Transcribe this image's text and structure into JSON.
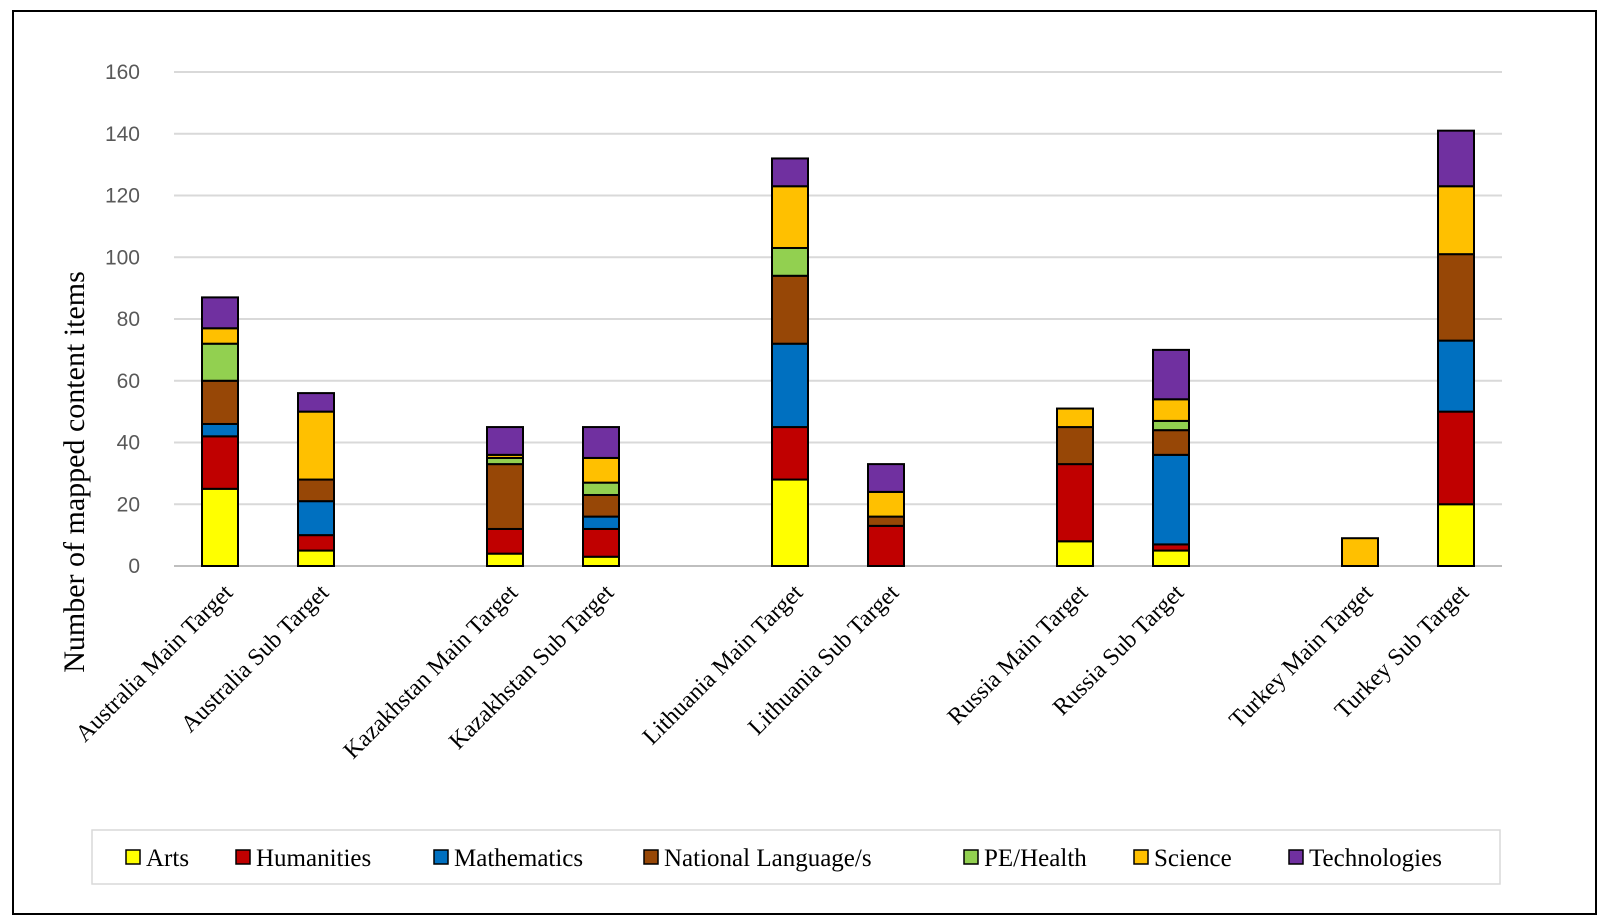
{
  "chart_data": {
    "type": "bar",
    "stacked": true,
    "title": "",
    "xlabel": "",
    "ylabel": "Number of mapped content items",
    "ylim": [
      0,
      160
    ],
    "yticks": [
      0,
      20,
      40,
      60,
      80,
      100,
      120,
      140,
      160
    ],
    "grid": true,
    "legend_position": "bottom",
    "categories": [
      "Australia Main Target",
      "Australia Sub Target",
      "Kazakhstan Main Target",
      "Kazakhstan Sub Target",
      "Lithuania Main Target",
      "Lithuania Sub Target",
      "Russia Main Target",
      "Russia Sub Target",
      "Turkey Main Target",
      "Turkey Sub Target"
    ],
    "groups": [
      [
        "Australia Main Target",
        "Australia Sub Target"
      ],
      [
        "Kazakhstan Main Target",
        "Kazakhstan Sub Target"
      ],
      [
        "Lithuania Main Target",
        "Lithuania Sub Target"
      ],
      [
        "Russia Main Target",
        "Russia Sub Target"
      ],
      [
        "Turkey Main Target",
        "Turkey Sub Target"
      ]
    ],
    "series": [
      {
        "name": "Arts",
        "color": "#FFFF00",
        "values": [
          25,
          5,
          4,
          3,
          28,
          0,
          8,
          5,
          0,
          20
        ]
      },
      {
        "name": "Humanities",
        "color": "#C00000",
        "values": [
          17,
          5,
          8,
          9,
          17,
          13,
          25,
          2,
          0,
          30
        ]
      },
      {
        "name": "Mathematics",
        "color": "#0070C0",
        "values": [
          4,
          11,
          0,
          4,
          27,
          0,
          0,
          29,
          0,
          23
        ]
      },
      {
        "name": "National Language/s",
        "color": "#974706",
        "values": [
          14,
          7,
          21,
          7,
          22,
          3,
          12,
          8,
          0,
          28
        ]
      },
      {
        "name": "PE/Health",
        "color": "#92D050",
        "values": [
          12,
          0,
          2,
          4,
          9,
          0,
          0,
          3,
          0,
          0
        ]
      },
      {
        "name": "Science",
        "color": "#FFC000",
        "values": [
          5,
          22,
          1,
          8,
          20,
          8,
          6,
          7,
          9,
          22
        ]
      },
      {
        "name": "Technologies",
        "color": "#7030A0",
        "values": [
          10,
          6,
          9,
          10,
          9,
          9,
          0,
          16,
          0,
          18
        ]
      }
    ]
  }
}
